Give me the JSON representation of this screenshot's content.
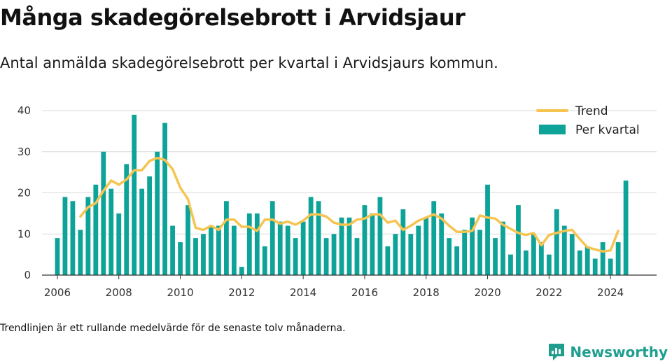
{
  "title": "Många skadegörelsebrott i Arvidsjaur",
  "subtitle": "Antal anmälda skadegörelsebrott per kvartal i Arvidsjaurs kommun.",
  "footnote": "Trendlinjen är ett rullande medelvärde för de senaste tolv månaderna.",
  "brand": {
    "name": "Newsworthy",
    "icon": "newsworthy-logo-icon",
    "color": "#1f9e8f"
  },
  "colors": {
    "bars": "#0ea398",
    "trend": "#f5c451",
    "grid": "#d9d9d9",
    "axis": "#333333"
  },
  "chart_data": {
    "type": "bar",
    "title": "",
    "xlabel": "",
    "ylabel": "",
    "ylim": [
      0,
      40
    ],
    "yticks": [
      0,
      10,
      20,
      30,
      40
    ],
    "xlim": [
      2005.5,
      2025.5
    ],
    "xticks": [
      2006,
      2008,
      2010,
      2012,
      2014,
      2016,
      2018,
      2020,
      2022,
      2024
    ],
    "grid": true,
    "legend": {
      "placement": "top-right",
      "entries": [
        "Trend",
        "Per kvartal"
      ]
    },
    "x_start": 2006.0,
    "x_step": 0.25,
    "series": [
      {
        "name": "Per kvartal",
        "kind": "bar",
        "values": [
          9,
          19,
          18,
          11,
          19,
          22,
          30,
          21,
          15,
          27,
          39,
          21,
          24,
          30,
          37,
          12,
          8,
          17,
          9,
          10,
          12,
          12,
          18,
          12,
          2,
          15,
          15,
          7,
          18,
          13,
          12,
          9,
          13,
          19,
          18,
          9,
          10,
          14,
          14,
          9,
          17,
          15,
          19,
          7,
          10,
          16,
          10,
          12,
          14,
          18,
          15,
          9,
          7,
          11,
          14,
          11,
          22,
          9,
          13,
          5,
          17,
          6,
          10,
          8,
          5,
          16,
          12,
          10,
          6,
          7,
          4,
          8,
          4,
          8,
          23
        ]
      },
      {
        "name": "Trend",
        "kind": "line",
        "x_start": 2006.75,
        "values": [
          14.25,
          16.5,
          17.5,
          20.5,
          23,
          22,
          23.25,
          25.5,
          25.5,
          27.75,
          28.5,
          28,
          25.75,
          21.25,
          18.5,
          11.5,
          11,
          12,
          11,
          13.5,
          13.5,
          11.75,
          11.75,
          10.75,
          13.5,
          13.5,
          12.5,
          13,
          12.25,
          13.25,
          14.75,
          14.75,
          14.25,
          12.75,
          12.25,
          12.25,
          13.5,
          13.75,
          14.75,
          14.75,
          12.75,
          13.25,
          11,
          12,
          13.25,
          14,
          14.75,
          13.75,
          12,
          10.5,
          10.5,
          10.75,
          14.5,
          14,
          13.75,
          12.25,
          11.25,
          10.25,
          9.75,
          10.25,
          7.25,
          9.75,
          10.25,
          10.75,
          11,
          8.75,
          6.75,
          6.25,
          5.75,
          6,
          10.75
        ]
      }
    ]
  }
}
